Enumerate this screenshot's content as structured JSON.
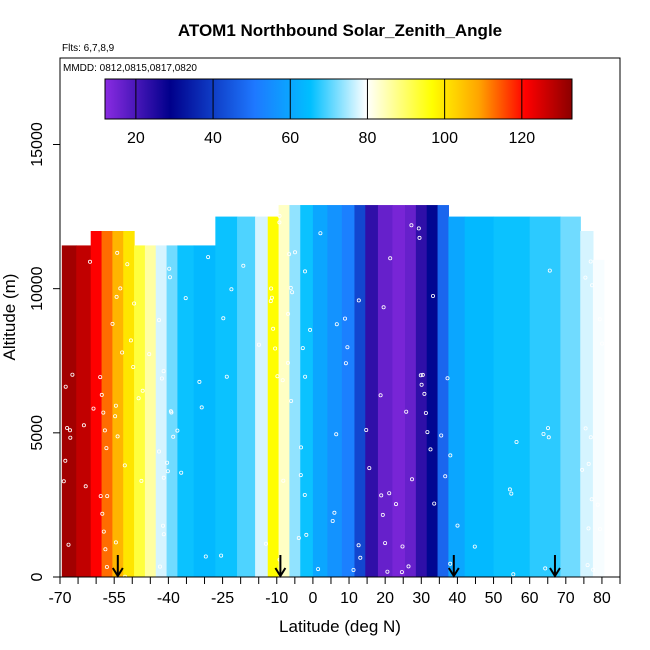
{
  "chart_data": {
    "type": "heatmap",
    "title": "ATOM1 Northbound Solar_Zenith_Angle",
    "flights_note": "Flts: 6,7,8,9",
    "dates_note": "MMDD: 0812,0815,0817,0820",
    "xlabel": "Latitude (deg N)",
    "ylabel": "Altitude (m)",
    "xlim": [
      -70,
      85
    ],
    "ylim": [
      0,
      18000
    ],
    "x_ticks": [
      -70,
      -55,
      -40,
      -25,
      -10,
      0,
      10,
      20,
      30,
      40,
      50,
      60,
      70,
      80
    ],
    "y_ticks": [
      0,
      5000,
      10000,
      15000
    ],
    "colorbar": {
      "range": [
        12,
        133
      ],
      "ticks": [
        20,
        40,
        60,
        80,
        100,
        120
      ],
      "colors": [
        "#8a2be2",
        "#00008b",
        "#1e78ff",
        "#00bfff",
        "#ffffff",
        "#ffff00",
        "#ffa500",
        "#ff0000",
        "#8b0000"
      ]
    },
    "profile": [
      {
        "lat": -68,
        "sza": 130,
        "top": 11500
      },
      {
        "lat": -63,
        "sza": 126,
        "top": 11500
      },
      {
        "lat": -60,
        "sza": 118,
        "top": 12000
      },
      {
        "lat": -57,
        "sza": 108,
        "top": 12000
      },
      {
        "lat": -54,
        "sza": 100,
        "top": 12000
      },
      {
        "lat": -51,
        "sza": 92,
        "top": 12000
      },
      {
        "lat": -48,
        "sza": 84,
        "top": 11500
      },
      {
        "lat": -45,
        "sza": 78,
        "top": 11500
      },
      {
        "lat": -42,
        "sza": 70,
        "top": 11500
      },
      {
        "lat": -39,
        "sza": 64,
        "top": 11500
      },
      {
        "lat": -36,
        "sza": 58,
        "top": 11500
      },
      {
        "lat": -30,
        "sza": 56,
        "top": 11500
      },
      {
        "lat": -24,
        "sza": 58,
        "top": 12500
      },
      {
        "lat": -18,
        "sza": 62,
        "top": 12500
      },
      {
        "lat": -14,
        "sza": 70,
        "top": 12500
      },
      {
        "lat": -11,
        "sza": 88,
        "top": 12500
      },
      {
        "lat": -8,
        "sza": 76,
        "top": 12900
      },
      {
        "lat": -5,
        "sza": 66,
        "top": 12900
      },
      {
        "lat": -2,
        "sza": 58,
        "top": 12900
      },
      {
        "lat": 2,
        "sza": 52,
        "top": 12900
      },
      {
        "lat": 6,
        "sza": 48,
        "top": 12900
      },
      {
        "lat": 10,
        "sza": 44,
        "top": 12900
      },
      {
        "lat": 13,
        "sza": 36,
        "top": 12900
      },
      {
        "lat": 16,
        "sza": 22,
        "top": 12900
      },
      {
        "lat": 20,
        "sza": 16,
        "top": 12900
      },
      {
        "lat": 24,
        "sza": 14,
        "top": 12900
      },
      {
        "lat": 27,
        "sza": 16,
        "top": 12900
      },
      {
        "lat": 30,
        "sza": 22,
        "top": 12900
      },
      {
        "lat": 33,
        "sza": 28,
        "top": 12900
      },
      {
        "lat": 36,
        "sza": 40,
        "top": 12900
      },
      {
        "lat": 39,
        "sza": 52,
        "top": 12500
      },
      {
        "lat": 45,
        "sza": 56,
        "top": 12500
      },
      {
        "lat": 55,
        "sza": 58,
        "top": 12500
      },
      {
        "lat": 65,
        "sza": 60,
        "top": 12500
      },
      {
        "lat": 72,
        "sza": 64,
        "top": 12500
      },
      {
        "lat": 76,
        "sza": 70,
        "top": 12000
      },
      {
        "lat": 79,
        "sza": 72,
        "top": 11000
      }
    ],
    "arrows": [
      -54,
      -9,
      39,
      67
    ]
  }
}
